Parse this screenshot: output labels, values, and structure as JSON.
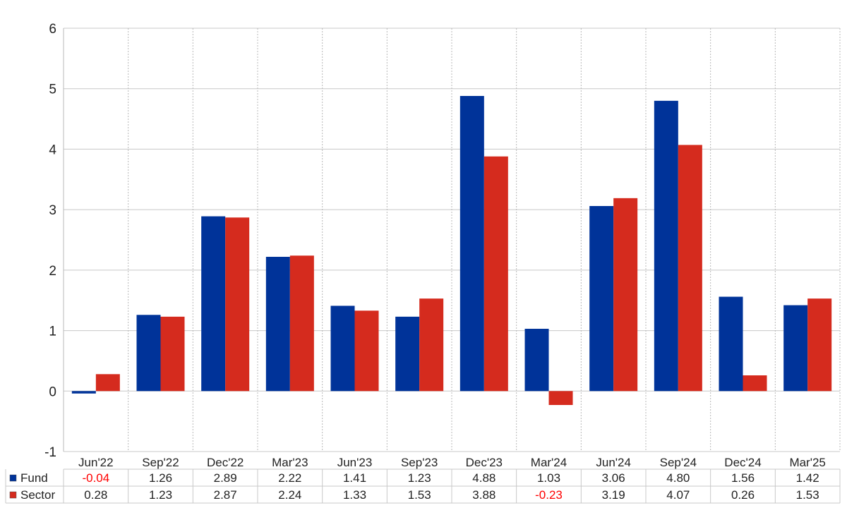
{
  "chart_data": {
    "type": "bar",
    "categories": [
      "Jun'22",
      "Sep'22",
      "Dec'22",
      "Mar'23",
      "Jun'23",
      "Sep'23",
      "Dec'23",
      "Mar'24",
      "Jun'24",
      "Sep'24",
      "Dec'24",
      "Mar'25"
    ],
    "series": [
      {
        "name": "Fund",
        "color": "#003399",
        "values": [
          -0.04,
          1.26,
          2.89,
          2.22,
          1.41,
          1.23,
          4.88,
          1.03,
          3.06,
          4.8,
          1.56,
          1.42
        ]
      },
      {
        "name": "Sector",
        "color": "#d52b1e",
        "values": [
          0.28,
          1.23,
          2.87,
          2.24,
          1.33,
          1.53,
          3.88,
          -0.23,
          3.19,
          4.07,
          0.26,
          1.53
        ]
      }
    ],
    "value_labels": {
      "Fund": [
        "-0.04",
        "1.26",
        "2.89",
        "2.22",
        "1.41",
        "1.23",
        "4.88",
        "1.03",
        "3.06",
        "4.80",
        "1.56",
        "1.42"
      ],
      "Sector": [
        "0.28",
        "1.23",
        "2.87",
        "2.24",
        "1.33",
        "1.53",
        "3.88",
        "-0.23",
        "3.19",
        "4.07",
        "0.26",
        "1.53"
      ]
    },
    "yticks": [
      "-1",
      "0",
      "1",
      "2",
      "3",
      "4",
      "5",
      "6"
    ],
    "ylim": [
      -1,
      6
    ],
    "negative_label_color": "#ff0000",
    "grid": true,
    "data_table": true
  }
}
